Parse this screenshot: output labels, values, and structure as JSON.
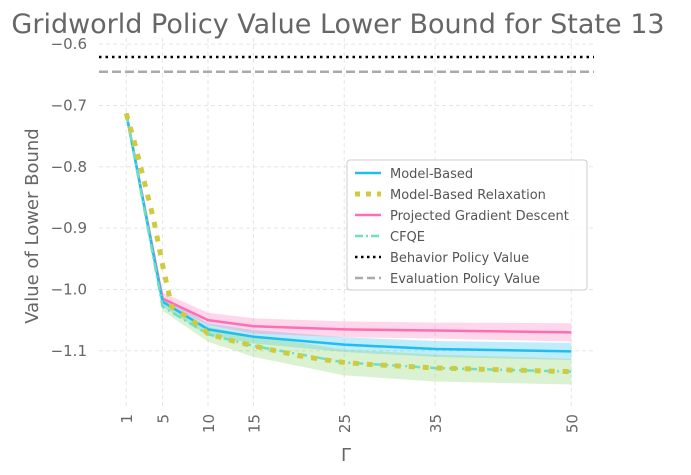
{
  "chart_data": {
    "type": "line",
    "title": "Gridworld Policy Value Lower Bound for State 13",
    "xlabel": "Γ",
    "ylabel": "Value of Lower Bound",
    "xlim": [
      -2,
      52.5
    ],
    "ylim": [
      -1.19,
      -0.59
    ],
    "xticks": [
      1,
      5,
      10,
      15,
      25,
      35,
      50
    ],
    "xtick_labels": [
      "1",
      "5",
      "10",
      "15",
      "25",
      "35",
      "50"
    ],
    "yticks": [
      -0.6,
      -0.7,
      -0.8,
      -0.9,
      -1.0,
      -1.1
    ],
    "ytick_labels": [
      "−0.6",
      "−0.7",
      "−0.8",
      "−0.9",
      "−1.0",
      "−1.1"
    ],
    "grid": true,
    "legend_position": "center-right",
    "series": [
      {
        "name": "Model-Based",
        "color": "#1ebef0",
        "style": "solid",
        "x": [
          1,
          5,
          10,
          15,
          25,
          35,
          50
        ],
        "y": [
          -0.713,
          -1.02,
          -1.065,
          -1.077,
          -1.09,
          -1.097,
          -1.101
        ],
        "band_low": [
          -0.718,
          -1.028,
          -1.075,
          -1.088,
          -1.102,
          -1.11,
          -1.115
        ],
        "band_high": [
          -0.708,
          -1.012,
          -1.055,
          -1.066,
          -1.078,
          -1.084,
          -1.087
        ]
      },
      {
        "name": "Model-Based Relaxation",
        "color": "#cfcb3f",
        "style": "dotted",
        "x": [
          1,
          2,
          3,
          4,
          5,
          6,
          7,
          8,
          9,
          10,
          12.5,
          15,
          17.5,
          20,
          22.5,
          25,
          27.5,
          30,
          32.5,
          35,
          37.5,
          40,
          42.5,
          45,
          47.5,
          50
        ],
        "y": [
          -0.713,
          -0.765,
          -0.825,
          -0.885,
          -0.96,
          -1.028,
          -1.038,
          -1.048,
          -1.058,
          -1.072,
          -1.083,
          -1.092,
          -1.1,
          -1.108,
          -1.114,
          -1.119,
          -1.122,
          -1.124,
          -1.126,
          -1.128,
          -1.129,
          -1.13,
          -1.131,
          -1.132,
          -1.133,
          -1.134
        ]
      },
      {
        "name": "Projected Gradient Descent",
        "color": "#ff6eb4",
        "style": "solid",
        "x": [
          1,
          5,
          10,
          15,
          25,
          35,
          50
        ],
        "y": [
          -0.713,
          -1.015,
          -1.05,
          -1.06,
          -1.065,
          -1.067,
          -1.07
        ],
        "band_low": [
          -0.716,
          -1.022,
          -1.058,
          -1.072,
          -1.078,
          -1.08,
          -1.085
        ],
        "band_high": [
          -0.71,
          -1.005,
          -1.038,
          -1.047,
          -1.052,
          -1.054,
          -1.055
        ]
      },
      {
        "name": "CFQE",
        "color": "#6ee0c0",
        "style": "dashdot",
        "x": [
          1,
          5,
          10,
          15,
          25,
          35,
          50
        ],
        "y": [
          -0.713,
          -1.028,
          -1.073,
          -1.092,
          -1.119,
          -1.128,
          -1.134
        ],
        "band_low": [
          -0.718,
          -1.035,
          -1.085,
          -1.11,
          -1.14,
          -1.15,
          -1.155
        ],
        "band_high": [
          -0.708,
          -1.02,
          -1.061,
          -1.075,
          -1.098,
          -1.106,
          -1.113
        ]
      },
      {
        "name": "Behavior Policy Value",
        "color": "#000000",
        "style": "dotted-h",
        "hline": -0.621
      },
      {
        "name": "Evaluation Policy Value",
        "color": "#aaaaaa",
        "style": "dashed-h",
        "hline": -0.645
      }
    ]
  }
}
